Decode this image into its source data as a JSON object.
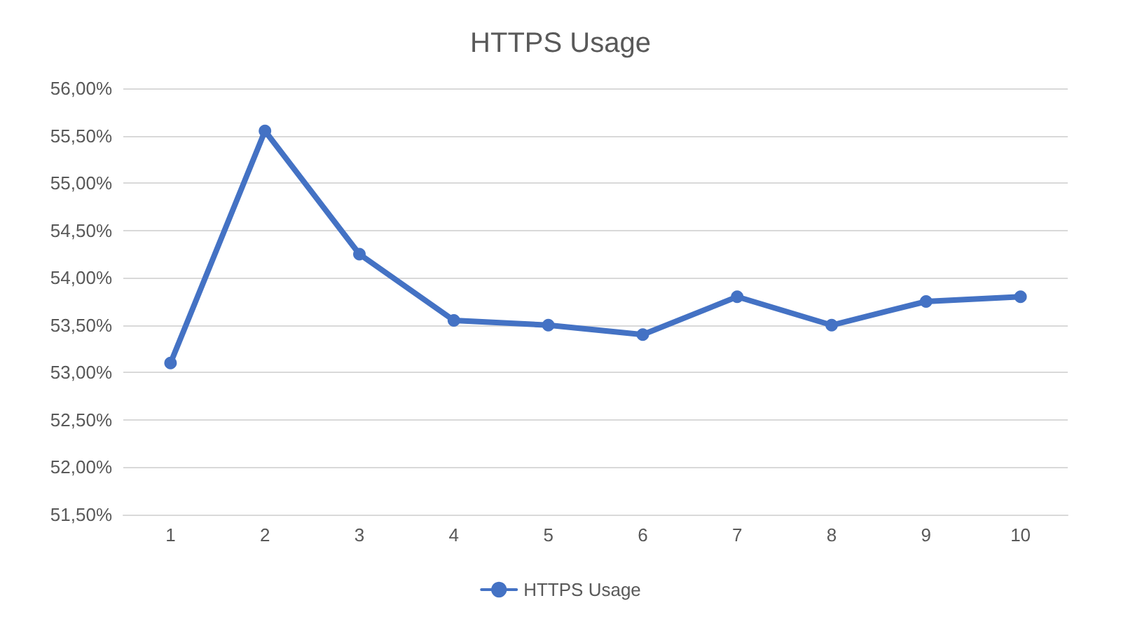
{
  "chart_data": {
    "type": "line",
    "title": "HTTPS Usage",
    "categories": [
      "1",
      "2",
      "3",
      "4",
      "5",
      "6",
      "7",
      "8",
      "9",
      "10"
    ],
    "series": [
      {
        "name": "HTTPS Usage",
        "color": "#4472c4",
        "values": [
          53.1,
          55.55,
          54.25,
          53.55,
          53.5,
          53.4,
          53.8,
          53.5,
          53.75,
          53.8
        ]
      }
    ],
    "ylim": [
      51.5,
      56
    ],
    "yticks": [
      {
        "value": 51.5,
        "label": "51,50%"
      },
      {
        "value": 52,
        "label": "52,00%"
      },
      {
        "value": 52.5,
        "label": "52,50%"
      },
      {
        "value": 53,
        "label": "53,00%"
      },
      {
        "value": 53.5,
        "label": "53,50%"
      },
      {
        "value": 54,
        "label": "54,00%"
      },
      {
        "value": 54.5,
        "label": "54,50%"
      },
      {
        "value": 55,
        "label": "55,00%"
      },
      {
        "value": 55.5,
        "label": "55,50%"
      },
      {
        "value": 56,
        "label": "56,00%"
      }
    ],
    "grid": "y",
    "legend": "bottom",
    "marker": "circle",
    "line_style": "solid"
  }
}
